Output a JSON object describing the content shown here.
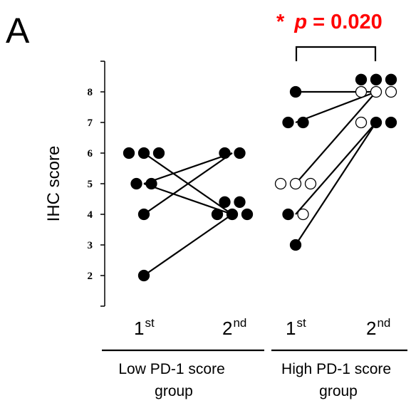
{
  "panel_label": "A",
  "significance": {
    "star": "*",
    "p_symbol": "p",
    "p_text": " = 0.020",
    "color": "#ff0000"
  },
  "group_labels": [
    {
      "line1": "Low PD-1 score",
      "line2": "group"
    },
    {
      "line1": "High PD-1 score",
      "line2": "group"
    }
  ],
  "chart_data": {
    "type": "scatter",
    "title": "",
    "ylabel": "IHC score",
    "xlabel": "",
    "ylim": [
      1,
      9
    ],
    "yticks": [
      2,
      3,
      4,
      5,
      6,
      7,
      8
    ],
    "grid": false,
    "legend": "none",
    "categories": [
      {
        "base": "1",
        "sup": "st"
      },
      {
        "base": "2",
        "sup": "nd"
      },
      {
        "base": "1",
        "sup": "st"
      },
      {
        "base": "2",
        "sup": "nd"
      }
    ],
    "points": [
      {
        "x": 0,
        "y": 6,
        "fill": "black"
      },
      {
        "x": 0,
        "y": 6,
        "fill": "black"
      },
      {
        "x": 0,
        "y": 6,
        "fill": "black"
      },
      {
        "x": 0,
        "y": 5,
        "fill": "black"
      },
      {
        "x": 0,
        "y": 5,
        "fill": "black"
      },
      {
        "x": 0,
        "y": 4,
        "fill": "black"
      },
      {
        "x": 0,
        "y": 2,
        "fill": "black"
      },
      {
        "x": 1,
        "y": 6,
        "fill": "black"
      },
      {
        "x": 1,
        "y": 6,
        "fill": "black"
      },
      {
        "x": 1,
        "y": 4.4,
        "fill": "black"
      },
      {
        "x": 1,
        "y": 4.4,
        "fill": "black"
      },
      {
        "x": 1,
        "y": 4,
        "fill": "black"
      },
      {
        "x": 1,
        "y": 4,
        "fill": "black"
      },
      {
        "x": 1,
        "y": 4,
        "fill": "black"
      },
      {
        "x": 2,
        "y": 8,
        "fill": "black"
      },
      {
        "x": 2,
        "y": 7,
        "fill": "black"
      },
      {
        "x": 2,
        "y": 7,
        "fill": "black"
      },
      {
        "x": 2,
        "y": 5,
        "fill": "white"
      },
      {
        "x": 2,
        "y": 5,
        "fill": "white"
      },
      {
        "x": 2,
        "y": 5,
        "fill": "white"
      },
      {
        "x": 2,
        "y": 4,
        "fill": "black"
      },
      {
        "x": 2,
        "y": 4,
        "fill": "white"
      },
      {
        "x": 2,
        "y": 3,
        "fill": "black"
      },
      {
        "x": 3,
        "y": 8.4,
        "fill": "black"
      },
      {
        "x": 3,
        "y": 8.4,
        "fill": "black"
      },
      {
        "x": 3,
        "y": 8.4,
        "fill": "black"
      },
      {
        "x": 3,
        "y": 8,
        "fill": "white"
      },
      {
        "x": 3,
        "y": 8,
        "fill": "white"
      },
      {
        "x": 3,
        "y": 8,
        "fill": "white"
      },
      {
        "x": 3,
        "y": 7,
        "fill": "white"
      },
      {
        "x": 3,
        "y": 7,
        "fill": "black"
      },
      {
        "x": 3,
        "y": 7,
        "fill": "black"
      }
    ],
    "pairs": [
      {
        "x1": 0,
        "y1": 6,
        "x2": 1,
        "y2": 4
      },
      {
        "x1": 0,
        "y1": 5,
        "x2": 1,
        "y2": 4
      },
      {
        "x1": 0,
        "y1": 4,
        "x2": 1,
        "y2": 6
      },
      {
        "x1": 0,
        "y1": 2,
        "x2": 1,
        "y2": 4
      },
      {
        "x1": 0,
        "y1": 5,
        "x2": 1,
        "y2": 6
      },
      {
        "x1": 2,
        "y1": 8,
        "x2": 3,
        "y2": 8
      },
      {
        "x1": 2,
        "y1": 7,
        "x2": 3,
        "y2": 8
      },
      {
        "x1": 2,
        "y1": 5,
        "x2": 3,
        "y2": 8
      },
      {
        "x1": 2,
        "y1": 4,
        "x2": 3,
        "y2": 7
      },
      {
        "x1": 2,
        "y1": 3,
        "x2": 3,
        "y2": 7
      }
    ]
  }
}
